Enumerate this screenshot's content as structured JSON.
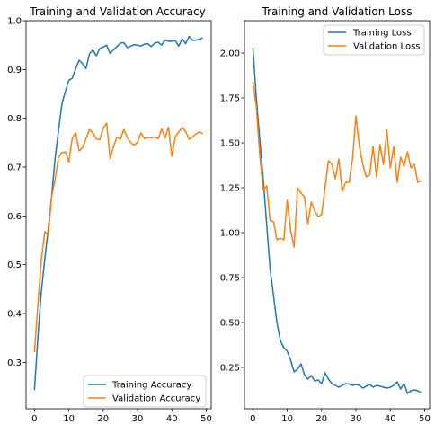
{
  "chart_data": [
    {
      "type": "line",
      "title": "Training and Validation Accuracy",
      "xlim": [
        -2.45,
        51.45
      ],
      "ylim": [
        0.205,
        1.0
      ],
      "xticks": [
        0,
        10,
        20,
        30,
        40,
        50
      ],
      "yticks": [
        0.3,
        0.4,
        0.5,
        0.6,
        0.7,
        0.8,
        0.9,
        1.0
      ],
      "ytick_labels": [
        "0.3",
        "0.4",
        "0.5",
        "0.6",
        "0.7",
        "0.8",
        "0.9",
        "1.0"
      ],
      "legend_loc": "lower-right",
      "x": [
        0,
        1,
        2,
        3,
        4,
        5,
        6,
        7,
        8,
        9,
        10,
        11,
        12,
        13,
        14,
        15,
        16,
        17,
        18,
        19,
        20,
        21,
        22,
        23,
        24,
        25,
        26,
        27,
        28,
        29,
        30,
        31,
        32,
        33,
        34,
        35,
        36,
        37,
        38,
        39,
        40,
        41,
        42,
        43,
        44,
        45,
        46,
        47,
        48,
        49
      ],
      "series": [
        {
          "name": "Training Accuracy",
          "color": "#1f77b4",
          "values": [
            0.243,
            0.352,
            0.445,
            0.512,
            0.572,
            0.641,
            0.718,
            0.775,
            0.83,
            0.855,
            0.878,
            0.882,
            0.902,
            0.919,
            0.912,
            0.902,
            0.932,
            0.94,
            0.928,
            0.943,
            0.946,
            0.95,
            0.933,
            0.94,
            0.947,
            0.954,
            0.955,
            0.945,
            0.948,
            0.951,
            0.95,
            0.948,
            0.952,
            0.953,
            0.947,
            0.954,
            0.956,
            0.95,
            0.96,
            0.958,
            0.958,
            0.959,
            0.948,
            0.963,
            0.953,
            0.968,
            0.96,
            0.96,
            0.962,
            0.965
          ]
        },
        {
          "name": "Validation Accuracy",
          "color": "#ff7f0e",
          "values": [
            0.321,
            0.42,
            0.51,
            0.568,
            0.558,
            0.64,
            0.675,
            0.72,
            0.73,
            0.731,
            0.71,
            0.76,
            0.77,
            0.733,
            0.74,
            0.759,
            0.777,
            0.77,
            0.758,
            0.756,
            0.78,
            0.79,
            0.718,
            0.742,
            0.762,
            0.757,
            0.777,
            0.761,
            0.75,
            0.745,
            0.751,
            0.77,
            0.758,
            0.761,
            0.76,
            0.762,
            0.758,
            0.778,
            0.76,
            0.782,
            0.722,
            0.763,
            0.772,
            0.781,
            0.773,
            0.757,
            0.762,
            0.768,
            0.772,
            0.768
          ]
        }
      ]
    },
    {
      "type": "line",
      "title": "Training and Validation Loss",
      "xlim": [
        -2.45,
        51.45
      ],
      "ylim": [
        0.02,
        2.18
      ],
      "xticks": [
        0,
        10,
        20,
        30,
        40,
        50
      ],
      "yticks": [
        0.25,
        0.5,
        0.75,
        1.0,
        1.25,
        1.5,
        1.75,
        2.0
      ],
      "ytick_labels": [
        "0.25",
        "0.50",
        "0.75",
        "1.00",
        "1.25",
        "1.50",
        "1.75",
        "2.00"
      ],
      "legend_loc": "upper-right",
      "x": [
        0,
        1,
        2,
        3,
        4,
        5,
        6,
        7,
        8,
        9,
        10,
        11,
        12,
        13,
        14,
        15,
        16,
        17,
        18,
        19,
        20,
        21,
        22,
        23,
        24,
        25,
        26,
        27,
        28,
        29,
        30,
        31,
        32,
        33,
        34,
        35,
        36,
        37,
        38,
        39,
        40,
        41,
        42,
        43,
        44,
        45,
        46,
        47,
        48,
        49
      ],
      "series": [
        {
          "name": "Training Loss",
          "color": "#1f77b4",
          "values": [
            2.03,
            1.75,
            1.52,
            1.3,
            1.05,
            0.8,
            0.65,
            0.5,
            0.4,
            0.36,
            0.34,
            0.29,
            0.225,
            0.24,
            0.27,
            0.21,
            0.185,
            0.205,
            0.175,
            0.18,
            0.16,
            0.22,
            0.185,
            0.16,
            0.15,
            0.14,
            0.15,
            0.16,
            0.158,
            0.15,
            0.155,
            0.15,
            0.135,
            0.145,
            0.155,
            0.14,
            0.15,
            0.145,
            0.14,
            0.135,
            0.14,
            0.15,
            0.17,
            0.13,
            0.16,
            0.105,
            0.12,
            0.125,
            0.12,
            0.11
          ]
        },
        {
          "name": "Validation Loss",
          "color": "#ff7f0e",
          "values": [
            1.84,
            1.7,
            1.43,
            1.24,
            1.26,
            1.07,
            1.06,
            0.96,
            0.97,
            0.96,
            1.18,
            1.01,
            0.92,
            1.25,
            1.22,
            1.2,
            1.05,
            1.17,
            1.12,
            1.09,
            1.1,
            1.25,
            1.4,
            1.38,
            1.3,
            1.41,
            1.23,
            1.28,
            1.28,
            1.41,
            1.65,
            1.48,
            1.38,
            1.31,
            1.32,
            1.48,
            1.31,
            1.49,
            1.38,
            1.57,
            1.36,
            1.48,
            1.28,
            1.42,
            1.37,
            1.45,
            1.36,
            1.38,
            1.28,
            1.29
          ]
        }
      ]
    }
  ]
}
